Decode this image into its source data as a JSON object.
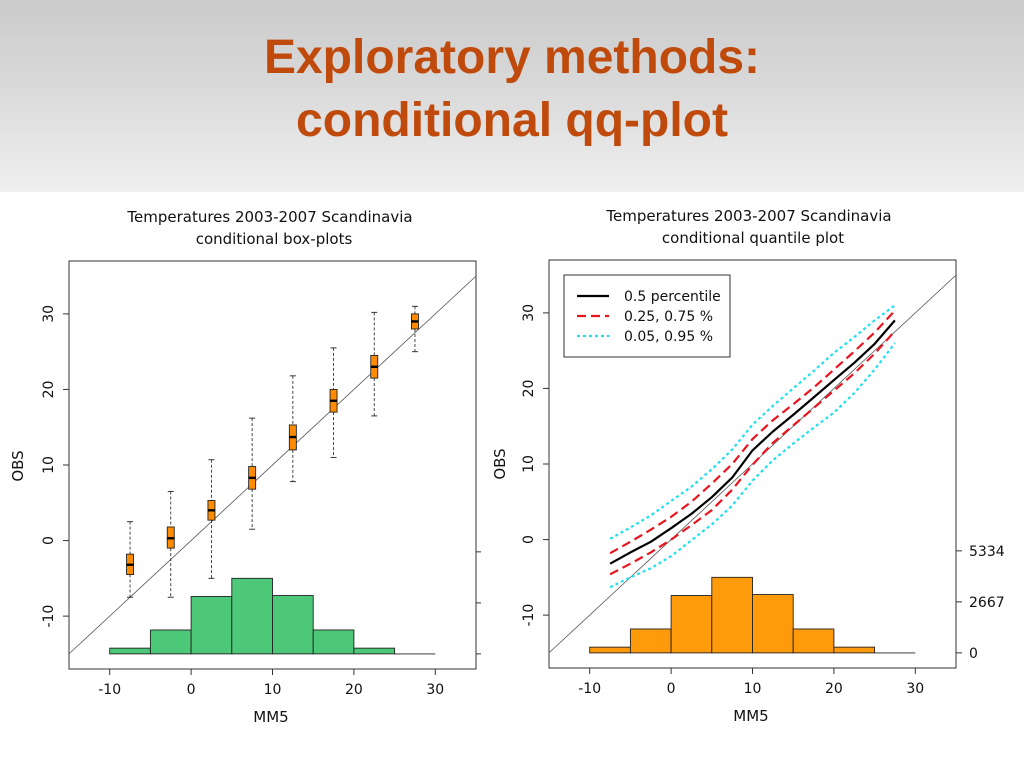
{
  "slide": {
    "title_line1": "Exploratory methods:",
    "title_line2": "conditional qq-plot",
    "accent_color": "#bf4a0c"
  },
  "chart_data": [
    {
      "type": "box",
      "title": "Temperatures 2003-2007 Scandinavia",
      "subtitle": "conditional box-plots",
      "xlabel": "MM5",
      "ylabel": "OBS",
      "xlim": [
        -15,
        35
      ],
      "ylim": [
        -17,
        37
      ],
      "xticks": [
        -10,
        0,
        10,
        20,
        30
      ],
      "yticks": [
        -10,
        0,
        10,
        20,
        30
      ],
      "reference_line": "y = x",
      "box_color": "#ff8c00",
      "histogram_color": "#4dc878",
      "boxes": [
        {
          "x": -7.5,
          "whisker_low": -7.5,
          "q1": -4.5,
          "median": -3.2,
          "q3": -1.8,
          "whisker_high": 2.5
        },
        {
          "x": -2.5,
          "whisker_low": -7.5,
          "q1": -1.0,
          "median": 0.3,
          "q3": 1.8,
          "whisker_high": 6.5
        },
        {
          "x": 2.5,
          "whisker_low": -5.0,
          "q1": 2.7,
          "median": 4.0,
          "q3": 5.3,
          "whisker_high": 10.7
        },
        {
          "x": 7.5,
          "whisker_low": 1.5,
          "q1": 6.8,
          "median": 8.3,
          "q3": 9.8,
          "whisker_high": 16.2
        },
        {
          "x": 12.5,
          "whisker_low": 7.8,
          "q1": 12.0,
          "median": 13.7,
          "q3": 15.3,
          "whisker_high": 21.8
        },
        {
          "x": 17.5,
          "whisker_low": 11.0,
          "q1": 17.0,
          "median": 18.5,
          "q3": 20.0,
          "whisker_high": 25.5
        },
        {
          "x": 22.5,
          "whisker_low": 16.5,
          "q1": 21.5,
          "median": 23.0,
          "q3": 24.5,
          "whisker_high": 30.2
        },
        {
          "x": 27.5,
          "whisker_low": 25.0,
          "q1": 28.0,
          "median": 29.0,
          "q3": 30.0,
          "whisker_high": 31.0
        }
      ],
      "histogram": {
        "bins": [
          -10,
          -5,
          0,
          5,
          10,
          15,
          20,
          25
        ],
        "counts": [
          300,
          1250,
          3000,
          3950,
          3050,
          1250,
          300
        ],
        "baseline_extends_to": 30
      }
    },
    {
      "type": "line",
      "title": "Temperatures 2003-2007 Scandinavia",
      "subtitle": "conditional quantile plot",
      "xlabel": "MM5",
      "ylabel": "OBS",
      "xlim": [
        -15,
        35
      ],
      "ylim": [
        -17,
        37
      ],
      "xticks": [
        -10,
        0,
        10,
        20,
        30
      ],
      "yticks": [
        -10,
        0,
        10,
        20,
        30
      ],
      "reference_line": "y = x",
      "legend_position": "top-left",
      "histogram_color": "#ff9a0a",
      "right_axis": {
        "ticks": [
          0,
          2667,
          5334
        ],
        "labels": [
          "0",
          "2667",
          "5334"
        ]
      },
      "x": [
        -7.5,
        -5,
        -2.5,
        0,
        2.5,
        5,
        7.5,
        10,
        12.5,
        15,
        17.5,
        20,
        22.5,
        25,
        27.5
      ],
      "series": [
        {
          "name": "0.5 percentile",
          "color": "#000000",
          "dash": "solid",
          "width": 2.2,
          "lines": [
            [
              -3.2,
              -1.7,
              -0.3,
              1.5,
              3.4,
              5.6,
              8.2,
              11.8,
              14.3,
              16.5,
              18.8,
              21.1,
              23.4,
              25.9,
              29.0
            ]
          ]
        },
        {
          "name": "0.25, 0.75 %",
          "color": "#e8141e",
          "dash": "dashed",
          "width": 2.2,
          "lines": [
            [
              -4.6,
              -3.2,
              -1.7,
              0.0,
              1.9,
              3.9,
              6.6,
              9.9,
              12.8,
              15.1,
              17.4,
              19.7,
              22.0,
              24.6,
              27.6
            ],
            [
              -1.8,
              -0.3,
              1.3,
              3.0,
              5.0,
              7.4,
              10.0,
              13.3,
              15.8,
              17.9,
              20.1,
              22.5,
              24.9,
              27.4,
              30.3
            ]
          ]
        },
        {
          "name": "0.05, 0.95 %",
          "color": "#1ee0ee",
          "dash": "dotted",
          "width": 2.2,
          "lines": [
            [
              -6.3,
              -5.0,
              -3.8,
              -2.2,
              -0.1,
              2.0,
              4.5,
              7.8,
              10.5,
              12.7,
              14.8,
              16.8,
              19.4,
              22.5,
              26.0
            ],
            [
              0.1,
              1.6,
              3.2,
              5.1,
              7.0,
              9.3,
              11.9,
              15.2,
              17.7,
              20.0,
              22.3,
              24.7,
              26.8,
              29.0,
              31.0
            ]
          ]
        }
      ],
      "histogram": {
        "bins": [
          -10,
          -5,
          0,
          5,
          10,
          15,
          20,
          25
        ],
        "counts": [
          300,
          1250,
          3000,
          3950,
          3050,
          1250,
          300
        ],
        "baseline_extends_to": 30
      }
    }
  ]
}
